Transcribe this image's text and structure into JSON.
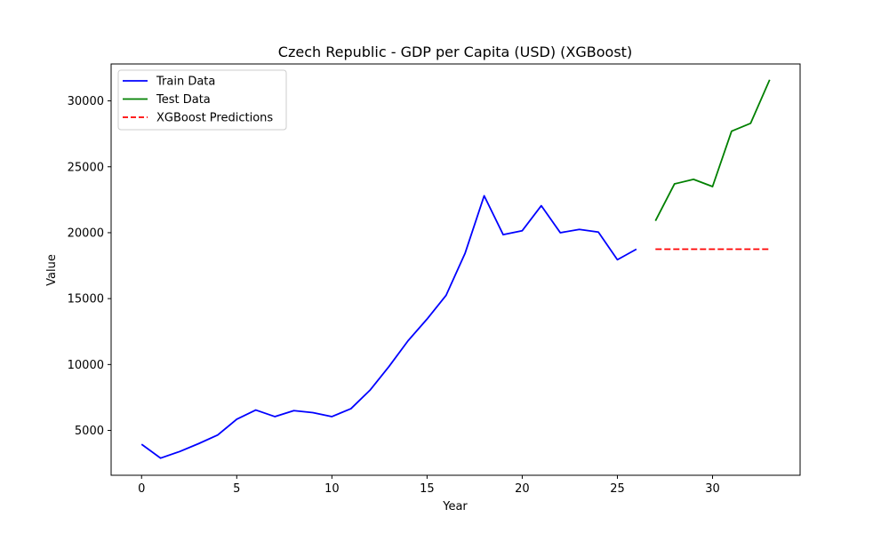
{
  "chart_data": {
    "type": "line",
    "title": "Czech Republic - GDP per Capita (USD) (XGBoost)",
    "xlabel": "Year",
    "ylabel": "Value",
    "xlim": [
      -1.6,
      34.6
    ],
    "ylim": [
      1600,
      32800
    ],
    "xticks": [
      0,
      5,
      10,
      15,
      20,
      25,
      30
    ],
    "yticks": [
      5000,
      10000,
      15000,
      20000,
      25000,
      30000
    ],
    "grid": false,
    "legend_position": "top-left",
    "series": [
      {
        "name": "Train Data",
        "color": "#0000ff",
        "style": "solid",
        "x": [
          0,
          1,
          2,
          3,
          4,
          5,
          6,
          7,
          8,
          9,
          10,
          11,
          12,
          13,
          14,
          15,
          16,
          17,
          18,
          19,
          20,
          21,
          22,
          23,
          24,
          25,
          26
        ],
        "values": [
          3950,
          2900,
          3400,
          4000,
          4650,
          5850,
          6550,
          6050,
          6500,
          6350,
          6050,
          6650,
          8050,
          9850,
          11800,
          13450,
          15250,
          18450,
          22800,
          19850,
          20150,
          22050,
          20000,
          20250,
          20050,
          17950,
          18750
        ]
      },
      {
        "name": "Test Data",
        "color": "#008000",
        "style": "solid",
        "x": [
          27,
          28,
          29,
          30,
          31,
          32,
          33
        ],
        "values": [
          20900,
          23700,
          24050,
          23500,
          27700,
          28300,
          31600
        ]
      },
      {
        "name": "XGBoost Predictions",
        "color": "#ff0000",
        "style": "dashed",
        "x": [
          27,
          28,
          29,
          30,
          31,
          32,
          33
        ],
        "values": [
          18750,
          18750,
          18750,
          18750,
          18750,
          18750,
          18750
        ]
      }
    ]
  }
}
